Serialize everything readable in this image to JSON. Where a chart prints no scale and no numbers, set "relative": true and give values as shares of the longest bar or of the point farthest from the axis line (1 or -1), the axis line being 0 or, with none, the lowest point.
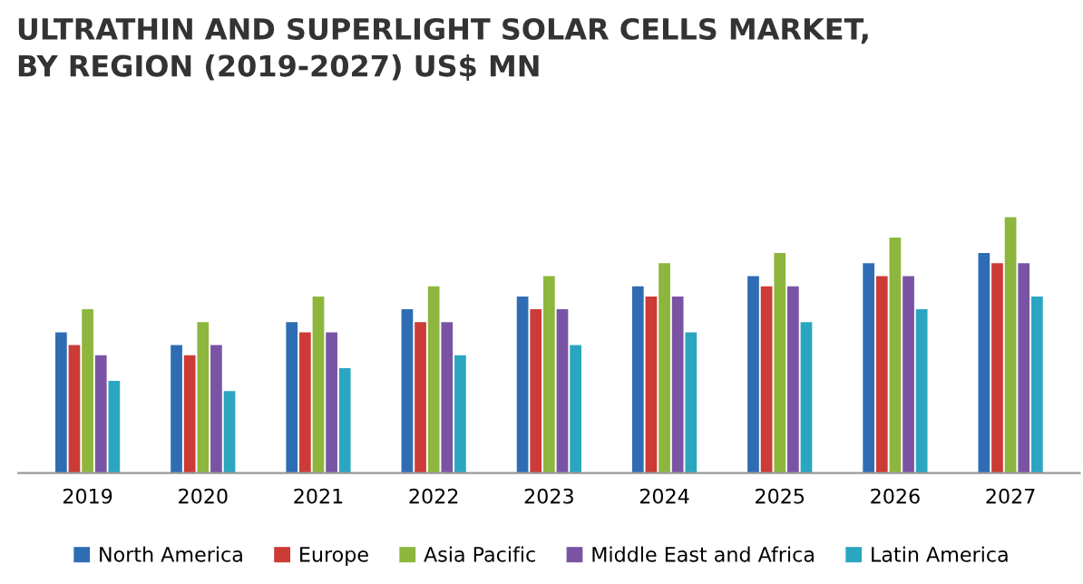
{
  "chart_data": {
    "type": "bar",
    "title": "ULTRATHIN AND SUPERLIGHT SOLAR CELLS MARKET,\nBY REGION (2019-2027) US$ MN",
    "relative": true,
    "legend": "bottom",
    "grid": false,
    "categories": [
      "2019",
      "2020",
      "2021",
      "2022",
      "2023",
      "2024",
      "2025",
      "2026",
      "2027"
    ],
    "series": [
      {
        "name": "North America",
        "color": "#2e6db4",
        "values": [
          0.55,
          0.5,
          0.59,
          0.64,
          0.69,
          0.73,
          0.77,
          0.82,
          0.86
        ]
      },
      {
        "name": "Europe",
        "color": "#cc3b36",
        "values": [
          0.5,
          0.46,
          0.55,
          0.59,
          0.64,
          0.69,
          0.73,
          0.77,
          0.82
        ]
      },
      {
        "name": "Asia Pacific",
        "color": "#8db63c",
        "values": [
          0.64,
          0.59,
          0.69,
          0.73,
          0.77,
          0.82,
          0.86,
          0.92,
          1
        ]
      },
      {
        "name": "Middle East and Africa",
        "color": "#7a54a4",
        "values": [
          0.46,
          0.5,
          0.55,
          0.59,
          0.64,
          0.69,
          0.73,
          0.77,
          0.82
        ]
      },
      {
        "name": "Latin America",
        "color": "#2ba6c1",
        "values": [
          0.36,
          0.32,
          0.41,
          0.46,
          0.5,
          0.55,
          0.59,
          0.64,
          0.69
        ]
      }
    ]
  }
}
